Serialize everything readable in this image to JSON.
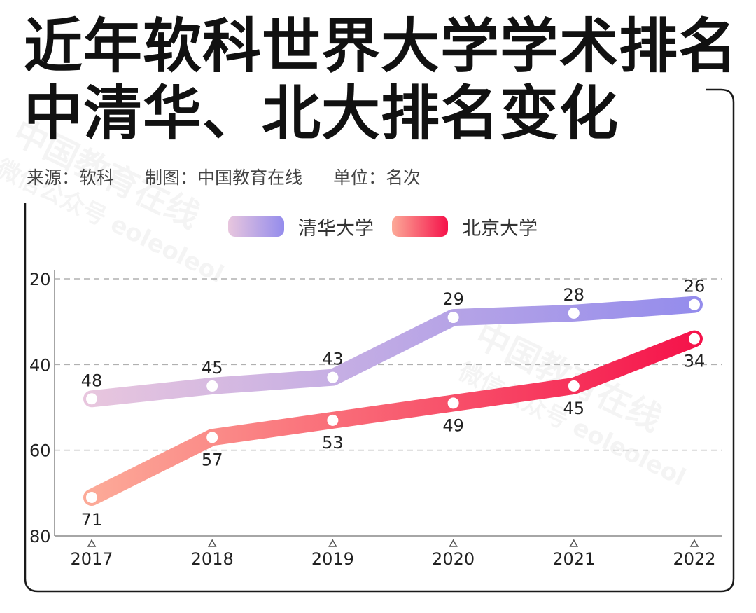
{
  "title": {
    "line1": "近年软科世界大学学术排名",
    "line2": "中清华、北大排名变化"
  },
  "meta": {
    "source": "来源：软科",
    "made_by": "制图：中国教育在线",
    "unit": "单位：名次"
  },
  "watermark": {
    "line1": "中国教育在线",
    "line2": "微信公众号 eoleoleol"
  },
  "legend": [
    "清华大学",
    "北京大学"
  ],
  "colors": {
    "tsinghua_start": "#e8c6de",
    "tsinghua_end": "#948cec",
    "pku_start": "#fcaa98",
    "pku_end": "#f5124a",
    "grid": "#b0b0b0",
    "axis": "#888888"
  },
  "chart_data": {
    "type": "line",
    "title": "近年软科世界大学学术排名中清华、北大排名变化",
    "xlabel": "",
    "ylabel": "名次",
    "categories": [
      "2017",
      "2018",
      "2019",
      "2020",
      "2021",
      "2022"
    ],
    "y_ticks": [
      20,
      40,
      60,
      80
    ],
    "ylim": [
      80,
      20
    ],
    "y_inverted": true,
    "grid": true,
    "legend_position": "top-center",
    "series": [
      {
        "name": "清华大学",
        "values": [
          48,
          45,
          43,
          29,
          28,
          26
        ]
      },
      {
        "name": "北京大学",
        "values": [
          71,
          57,
          53,
          49,
          45,
          34
        ]
      }
    ]
  }
}
